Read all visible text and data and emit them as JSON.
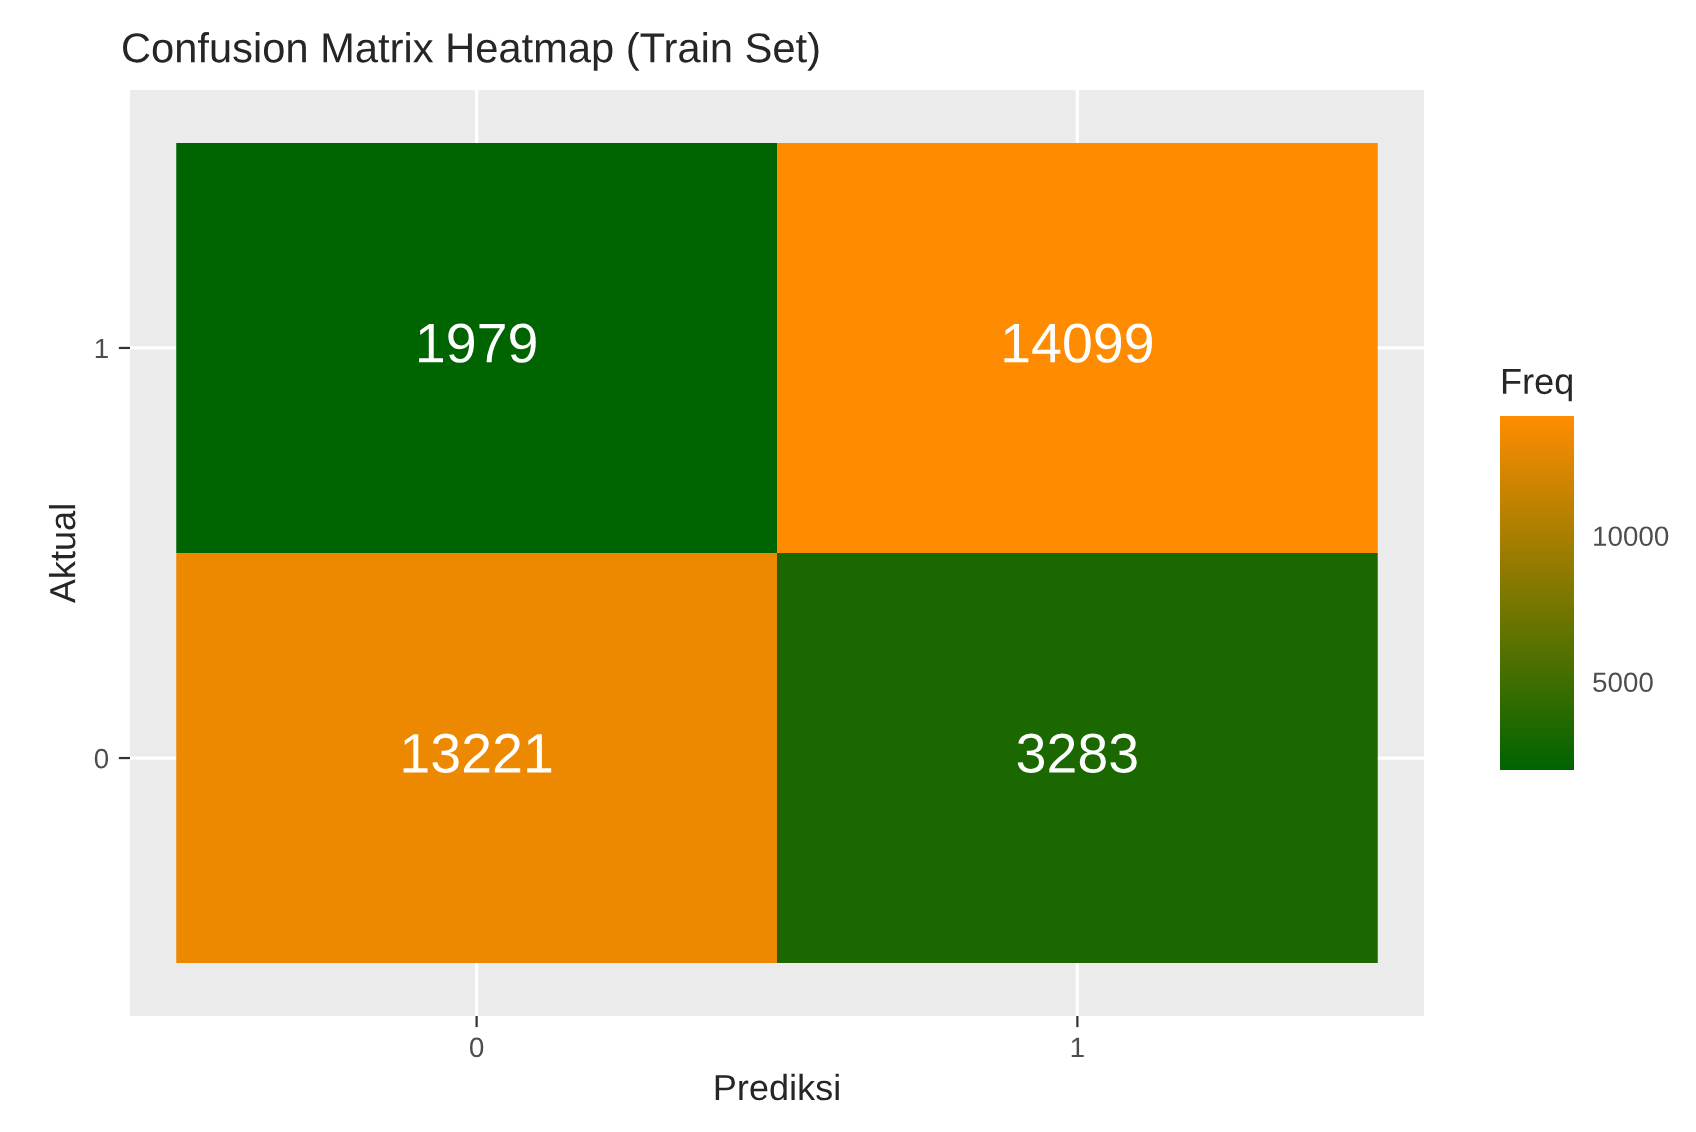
{
  "chart_data": {
    "type": "heatmap",
    "title": "Confusion Matrix Heatmap (Train Set)",
    "xlabel": "Prediksi",
    "ylabel": "Aktual",
    "clabel": "Freq",
    "categories": [
      "0",
      "1"
    ],
    "y_categories": [
      "1",
      "0"
    ],
    "cells": [
      [
        1979,
        14099
      ],
      [
        13221,
        3283
      ]
    ],
    "colors": [
      "#006400",
      "#ff8c00"
    ],
    "clim": [
      1979,
      14099
    ],
    "cticks": [
      5000,
      10000
    ],
    "data_labels": true,
    "grid": true
  }
}
